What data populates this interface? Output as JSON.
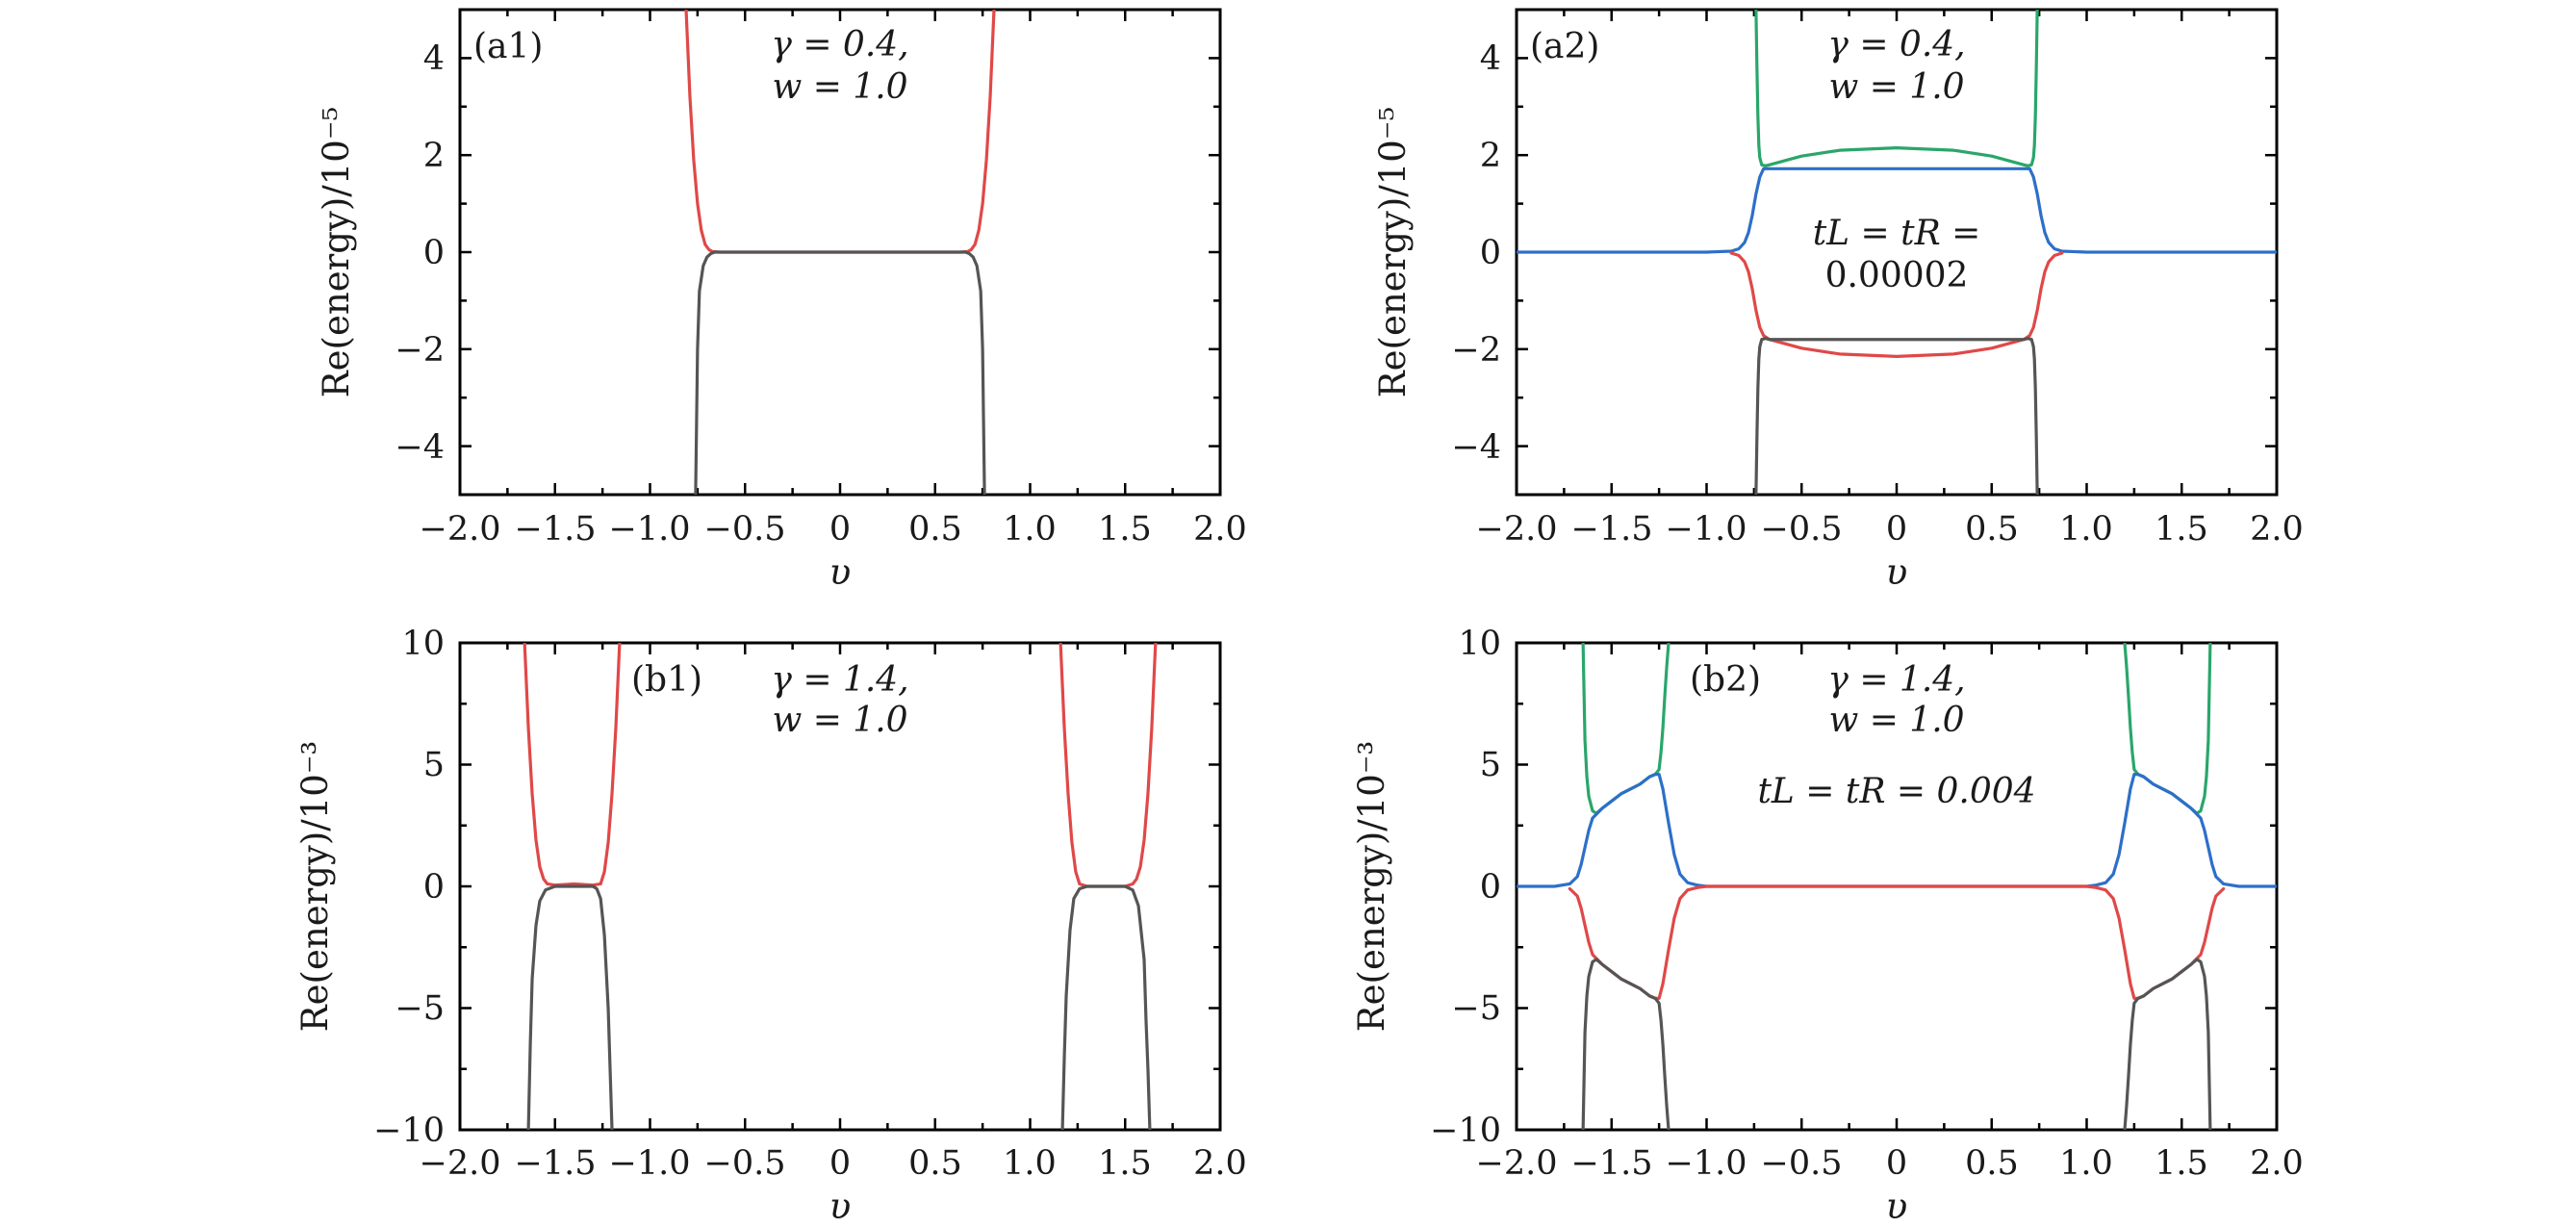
{
  "chart_data": [
    {
      "id": "a1",
      "type": "line",
      "panel_label": "(a1)",
      "xlabel": "υ",
      "ylabel": "Re(energy)/10⁻⁵",
      "xlim": [
        -2.0,
        2.0
      ],
      "ylim": [
        -5,
        5
      ],
      "xticks": [
        "−2.0",
        "−1.5",
        "−1.0",
        "−0.5",
        "0",
        "0.5",
        "1.0",
        "1.5",
        "2.0"
      ],
      "yticks": [
        "−4",
        "−2",
        "0",
        "2",
        "4"
      ],
      "ytick_values": [
        -4,
        -2,
        0,
        2,
        4
      ],
      "annotations": [
        "γ = 0.4,",
        "w = 1.0"
      ],
      "series": [
        {
          "name": "upper band",
          "color": "#e04848",
          "x": [
            -0.81,
            -0.79,
            -0.77,
            -0.75,
            -0.73,
            -0.71,
            -0.69,
            -0.67,
            -0.63,
            0.0,
            0.63,
            0.67,
            0.69,
            0.71,
            0.73,
            0.75,
            0.77,
            0.79,
            0.81
          ],
          "values": [
            5,
            3.2,
            1.9,
            1.0,
            0.45,
            0.16,
            0.05,
            0.01,
            0,
            0,
            0,
            0.01,
            0.05,
            0.16,
            0.45,
            1.0,
            1.9,
            3.2,
            5
          ]
        },
        {
          "name": "lower band",
          "color": "#555555",
          "x": [
            -0.76,
            -0.755,
            -0.75,
            -0.74,
            -0.72,
            -0.7,
            -0.68,
            -0.66,
            0.0,
            0.66,
            0.68,
            0.7,
            0.72,
            0.74,
            0.75,
            0.755,
            0.76
          ],
          "values": [
            -5,
            -3.5,
            -2.0,
            -0.8,
            -0.28,
            -0.1,
            -0.03,
            0,
            0,
            0,
            -0.03,
            -0.1,
            -0.28,
            -0.8,
            -2.0,
            -3.5,
            -5
          ]
        }
      ]
    },
    {
      "id": "a2",
      "type": "line",
      "panel_label": "(a2)",
      "xlabel": "υ",
      "ylabel": "Re(energy)/10⁻⁵",
      "xlim": [
        -2.0,
        2.0
      ],
      "ylim": [
        -5,
        5
      ],
      "xticks": [
        "−2.0",
        "−1.5",
        "−1.0",
        "−0.5",
        "0",
        "0.5",
        "1.0",
        "1.5",
        "2.0"
      ],
      "yticks": [
        "−4",
        "−2",
        "0",
        "2",
        "4"
      ],
      "ytick_values": [
        -4,
        -2,
        0,
        2,
        4
      ],
      "annotations": [
        "γ = 0.4,",
        "w = 1.0"
      ],
      "annotation2": [
        "tL = tR =",
        "0.00002"
      ],
      "series": [
        {
          "name": "green",
          "color": "#2aa66b",
          "x": [
            -0.74,
            -0.735,
            -0.73,
            -0.725,
            -0.72,
            -0.71,
            -0.69,
            -0.67,
            -0.5,
            -0.3,
            0.0,
            0.3,
            0.5,
            0.67,
            0.69,
            0.71,
            0.72,
            0.725,
            0.73,
            0.735,
            0.74
          ],
          "values": [
            5,
            3.8,
            2.8,
            2.2,
            1.95,
            1.8,
            1.78,
            1.8,
            1.98,
            2.1,
            2.15,
            2.1,
            1.98,
            1.8,
            1.78,
            1.8,
            1.95,
            2.2,
            2.8,
            3.8,
            5
          ]
        },
        {
          "name": "blue",
          "color": "#2d6fc9",
          "x": [
            -2.0,
            -1.0,
            -0.87,
            -0.83,
            -0.8,
            -0.78,
            -0.76,
            -0.74,
            -0.72,
            -0.7,
            0.7,
            0.72,
            0.74,
            0.76,
            0.78,
            0.8,
            0.83,
            0.87,
            1.0,
            2.0
          ],
          "values": [
            0,
            0,
            0.02,
            0.07,
            0.2,
            0.4,
            0.75,
            1.2,
            1.55,
            1.72,
            1.72,
            1.55,
            1.2,
            0.75,
            0.4,
            0.2,
            0.07,
            0.02,
            0,
            0
          ]
        },
        {
          "name": "red",
          "color": "#e04848",
          "x": [
            -0.87,
            -0.83,
            -0.8,
            -0.78,
            -0.76,
            -0.74,
            -0.72,
            -0.7,
            -0.67,
            -0.5,
            -0.3,
            0.0,
            0.3,
            0.5,
            0.67,
            0.7,
            0.72,
            0.74,
            0.76,
            0.78,
            0.8,
            0.83,
            0.87
          ],
          "values": [
            -0.02,
            -0.07,
            -0.2,
            -0.4,
            -0.75,
            -1.2,
            -1.55,
            -1.72,
            -1.8,
            -1.98,
            -2.1,
            -2.15,
            -2.1,
            -1.98,
            -1.8,
            -1.72,
            -1.55,
            -1.2,
            -0.75,
            -0.4,
            -0.2,
            -0.07,
            -0.02
          ]
        },
        {
          "name": "gray",
          "color": "#555555",
          "x": [
            -0.74,
            -0.735,
            -0.73,
            -0.725,
            -0.72,
            -0.71,
            -0.69,
            -0.67,
            0.67,
            0.69,
            0.71,
            0.72,
            0.725,
            0.73,
            0.735,
            0.74
          ],
          "values": [
            -5,
            -3.8,
            -2.8,
            -2.2,
            -1.95,
            -1.8,
            -1.78,
            -1.8,
            -1.8,
            -1.78,
            -1.8,
            -1.95,
            -2.2,
            -2.8,
            -3.8,
            -5
          ]
        }
      ]
    },
    {
      "id": "b1",
      "type": "line",
      "panel_label": "(b1)",
      "xlabel": "υ",
      "ylabel": "Re(energy)/10⁻³",
      "xlim": [
        -2.0,
        2.0
      ],
      "ylim": [
        -10,
        10
      ],
      "xticks": [
        "−2.0",
        "−1.5",
        "−1.0",
        "−0.5",
        "0",
        "0.5",
        "1.0",
        "1.5",
        "2.0"
      ],
      "yticks": [
        "−10",
        "−5",
        "0",
        "5",
        "10"
      ],
      "ytick_values": [
        -10,
        -5,
        0,
        5,
        10
      ],
      "annotations": [
        "γ = 1.4,",
        "w = 1.0"
      ],
      "series": [
        {
          "name": "red left",
          "color": "#e04848",
          "x": [
            -1.66,
            -1.64,
            -1.62,
            -1.6,
            -1.58,
            -1.56,
            -1.54,
            -1.5,
            -1.4,
            -1.3,
            -1.26,
            -1.24,
            -1.22,
            -1.2,
            -1.18,
            -1.16
          ],
          "values": [
            10,
            6.5,
            3.8,
            1.9,
            0.8,
            0.3,
            0.1,
            0.05,
            0.1,
            0.05,
            0.1,
            0.6,
            1.8,
            3.8,
            6.5,
            10
          ]
        },
        {
          "name": "red right",
          "color": "#e04848",
          "x": [
            1.16,
            1.18,
            1.2,
            1.22,
            1.24,
            1.26,
            1.3,
            1.5,
            1.54,
            1.56,
            1.58,
            1.6,
            1.62,
            1.64,
            1.66
          ],
          "values": [
            10,
            6.5,
            3.8,
            1.8,
            0.6,
            0.1,
            0,
            0,
            0.1,
            0.3,
            0.8,
            1.9,
            3.8,
            6.5,
            10
          ]
        },
        {
          "name": "gray left",
          "color": "#555555",
          "x": [
            -1.64,
            -1.63,
            -1.62,
            -1.6,
            -1.58,
            -1.55,
            -1.5,
            -1.3,
            -1.28,
            -1.26,
            -1.24,
            -1.22,
            -1.21,
            -1.2
          ],
          "values": [
            -10,
            -6.5,
            -3.8,
            -1.6,
            -0.6,
            -0.15,
            0,
            0,
            -0.1,
            -0.5,
            -2.0,
            -5.0,
            -7.5,
            -10
          ]
        },
        {
          "name": "gray right",
          "color": "#555555",
          "x": [
            1.17,
            1.18,
            1.19,
            1.21,
            1.23,
            1.26,
            1.3,
            1.5,
            1.54,
            1.57,
            1.6,
            1.61,
            1.62,
            1.63
          ],
          "values": [
            -10,
            -7.0,
            -4.5,
            -1.8,
            -0.5,
            -0.1,
            0,
            0,
            -0.15,
            -0.8,
            -3.0,
            -5.5,
            -7.5,
            -10
          ]
        }
      ]
    },
    {
      "id": "b2",
      "type": "line",
      "panel_label": "(b2)",
      "xlabel": "υ",
      "ylabel": "Re(energy)/10⁻³",
      "xlim": [
        -2.0,
        2.0
      ],
      "ylim": [
        -10,
        10
      ],
      "xticks": [
        "−2.0",
        "−1.5",
        "−1.0",
        "−0.5",
        "0",
        "0.5",
        "1.0",
        "1.5",
        "2.0"
      ],
      "yticks": [
        "−10",
        "−5",
        "0",
        "5",
        "10"
      ],
      "ytick_values": [
        -10,
        -5,
        0,
        5,
        10
      ],
      "annotations": [
        "γ = 1.4,",
        "w = 1.0"
      ],
      "annotation2": [
        "tL = tR = 0.004"
      ],
      "series": [
        {
          "name": "green left",
          "color": "#2aa66b",
          "x": [
            -1.65,
            -1.645,
            -1.64,
            -1.63,
            -1.62,
            -1.6,
            -1.58,
            -1.55,
            -1.5,
            -1.45,
            -1.4,
            -1.35,
            -1.3,
            -1.27,
            -1.25,
            -1.24,
            -1.23,
            -1.22,
            -1.21,
            -1.2
          ],
          "values": [
            10,
            8,
            6,
            4.5,
            3.7,
            3.1,
            3.0,
            3.2,
            3.5,
            3.8,
            4.0,
            4.2,
            4.5,
            4.6,
            4.8,
            5.5,
            6.5,
            7.8,
            9,
            10
          ]
        },
        {
          "name": "green right",
          "color": "#2aa66b",
          "x": [
            1.2,
            1.21,
            1.22,
            1.23,
            1.24,
            1.25,
            1.27,
            1.3,
            1.35,
            1.4,
            1.45,
            1.5,
            1.55,
            1.58,
            1.6,
            1.62,
            1.63,
            1.64,
            1.645,
            1.65
          ],
          "values": [
            10,
            9,
            7.8,
            6.5,
            5.5,
            4.8,
            4.6,
            4.5,
            4.2,
            4.0,
            3.8,
            3.5,
            3.2,
            3.0,
            3.1,
            3.7,
            4.5,
            6,
            8,
            10
          ]
        },
        {
          "name": "blue",
          "color": "#2d6fc9",
          "x": [
            -2.0,
            -1.8,
            -1.72,
            -1.68,
            -1.66,
            -1.64,
            -1.62,
            -1.6,
            -1.55,
            -1.5,
            -1.45,
            -1.4,
            -1.35,
            -1.3,
            -1.27,
            -1.25,
            -1.23,
            -1.2,
            -1.17,
            -1.14,
            -1.1,
            -1.05,
            -1.0,
            1.0,
            1.05,
            1.1,
            1.14,
            1.17,
            1.2,
            1.23,
            1.25,
            1.27,
            1.3,
            1.35,
            1.4,
            1.45,
            1.5,
            1.55,
            1.6,
            1.62,
            1.64,
            1.66,
            1.68,
            1.72,
            1.8,
            2.0
          ],
          "values": [
            0,
            0,
            0.1,
            0.4,
            0.9,
            1.6,
            2.3,
            2.8,
            3.2,
            3.5,
            3.8,
            4.0,
            4.2,
            4.5,
            4.6,
            4.6,
            4.0,
            2.6,
            1.3,
            0.5,
            0.15,
            0.05,
            0,
            0,
            0.05,
            0.15,
            0.5,
            1.3,
            2.6,
            4.0,
            4.6,
            4.6,
            4.5,
            4.2,
            4.0,
            3.8,
            3.5,
            3.2,
            2.8,
            2.3,
            1.6,
            0.9,
            0.4,
            0.1,
            0,
            0
          ]
        },
        {
          "name": "red",
          "color": "#e04848",
          "x": [
            -1.72,
            -1.68,
            -1.66,
            -1.64,
            -1.62,
            -1.6,
            -1.55,
            -1.5,
            -1.45,
            -1.4,
            -1.35,
            -1.3,
            -1.27,
            -1.25,
            -1.23,
            -1.2,
            -1.17,
            -1.14,
            -1.1,
            -1.05,
            -1.0,
            1.0,
            1.05,
            1.1,
            1.14,
            1.17,
            1.2,
            1.23,
            1.25,
            1.27,
            1.3,
            1.35,
            1.4,
            1.45,
            1.5,
            1.55,
            1.6,
            1.62,
            1.64,
            1.66,
            1.68,
            1.72
          ],
          "values": [
            -0.1,
            -0.4,
            -0.9,
            -1.6,
            -2.3,
            -2.8,
            -3.2,
            -3.5,
            -3.8,
            -4.0,
            -4.2,
            -4.5,
            -4.6,
            -4.6,
            -4.0,
            -2.6,
            -1.3,
            -0.5,
            -0.15,
            -0.05,
            0,
            0,
            -0.05,
            -0.15,
            -0.5,
            -1.3,
            -2.6,
            -4.0,
            -4.6,
            -4.6,
            -4.5,
            -4.2,
            -4.0,
            -3.8,
            -3.5,
            -3.2,
            -2.8,
            -2.3,
            -1.6,
            -0.9,
            -0.4,
            -0.1
          ]
        },
        {
          "name": "gray left",
          "color": "#555555",
          "x": [
            -1.65,
            -1.645,
            -1.64,
            -1.63,
            -1.62,
            -1.6,
            -1.58,
            -1.55,
            -1.5,
            -1.45,
            -1.4,
            -1.35,
            -1.3,
            -1.27,
            -1.25,
            -1.24,
            -1.23,
            -1.22,
            -1.21,
            -1.2
          ],
          "values": [
            -10,
            -8,
            -6,
            -4.5,
            -3.7,
            -3.1,
            -3.0,
            -3.2,
            -3.5,
            -3.8,
            -4.0,
            -4.2,
            -4.5,
            -4.6,
            -4.8,
            -5.5,
            -6.5,
            -7.8,
            -9,
            -10
          ]
        },
        {
          "name": "gray right",
          "color": "#555555",
          "x": [
            1.2,
            1.21,
            1.22,
            1.23,
            1.24,
            1.25,
            1.27,
            1.3,
            1.35,
            1.4,
            1.45,
            1.5,
            1.55,
            1.58,
            1.6,
            1.62,
            1.63,
            1.64,
            1.645,
            1.65
          ],
          "values": [
            -10,
            -9,
            -7.8,
            -6.5,
            -5.5,
            -4.8,
            -4.6,
            -4.5,
            -4.2,
            -4.0,
            -3.8,
            -3.5,
            -3.2,
            -3.0,
            -3.1,
            -3.7,
            -4.5,
            -6,
            -8,
            -10
          ]
        }
      ]
    }
  ]
}
